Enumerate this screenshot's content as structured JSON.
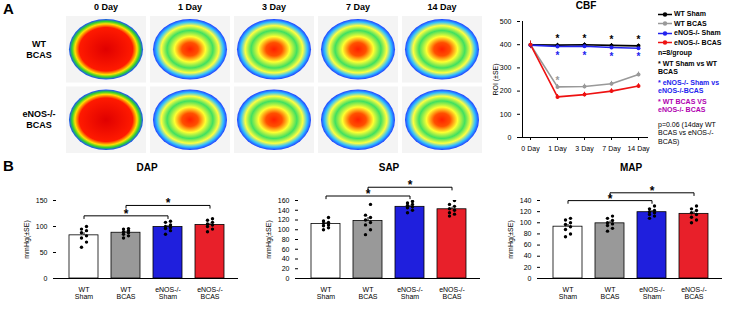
{
  "panel_labels": [
    "A",
    "B"
  ],
  "image_grid": {
    "columns": [
      "0 Day",
      "1 Day",
      "3 Day",
      "7 Day",
      "14 Day"
    ],
    "rows": [
      "WT BCAS",
      "eNOS-/- BCAS"
    ]
  },
  "chart_data": [
    {
      "type": "line",
      "title": "CBF",
      "y_label": "ROI (±SE)",
      "categories": [
        "0 Day",
        "1 Day",
        "3 Day",
        "7 Day",
        "14 Day"
      ],
      "ylim": [
        0,
        500
      ],
      "yticks": [
        0,
        100,
        200,
        300,
        400,
        500
      ],
      "legend": "right",
      "series": [
        {
          "name": "WT Sham",
          "color": "#000000",
          "marker": "circle",
          "values": [
            400,
            398,
            400,
            397,
            395
          ],
          "errors": [
            15,
            8,
            8,
            8,
            8
          ]
        },
        {
          "name": "WT BCAS",
          "color": "#999999",
          "marker": "circle",
          "values": [
            400,
            218,
            220,
            232,
            272
          ],
          "errors": [
            15,
            10,
            10,
            10,
            10
          ]
        },
        {
          "name": "eNOS-/- Sham",
          "color": "#2222ee",
          "marker": "circle",
          "values": [
            398,
            392,
            393,
            388,
            385
          ],
          "errors": [
            15,
            8,
            8,
            8,
            8
          ]
        },
        {
          "name": "eNOS-/- BCAS",
          "color": "#ee1111",
          "marker": "circle",
          "values": [
            400,
            175,
            185,
            200,
            222
          ],
          "errors": [
            15,
            10,
            10,
            10,
            10
          ]
        }
      ],
      "annotations": [
        {
          "label": "*",
          "color": "#000000",
          "series": "WT Sham",
          "categories": [
            "1 Day",
            "3 Day",
            "7 Day",
            "14 Day"
          ],
          "side": "above"
        },
        {
          "label": "*",
          "color": "#2222ee",
          "series": "eNOS-/- Sham",
          "categories": [
            "1 Day",
            "3 Day",
            "7 Day",
            "14 Day"
          ],
          "side": "below"
        },
        {
          "label": "*",
          "color": "#999999",
          "series": "WT BCAS",
          "categories": [
            "1 Day"
          ],
          "side": "above"
        }
      ],
      "stat_legend": [
        {
          "label": "* WT Sham vs WT BCAS",
          "color": "#000000"
        },
        {
          "label": "* eNOS-/- Sham vs eNOS-/-BCAS",
          "color": "#2222ee"
        },
        {
          "label": "* WT BCAS VS eNOS-/- BCAS",
          "color": "#b000b0"
        }
      ],
      "notes": [
        "n=8/group",
        "p=0.06 (14day WT BCAS vs eNOS-/-BCAS)"
      ]
    },
    {
      "type": "bar",
      "title": "DAP",
      "y_label": "mmHg(±SE)",
      "categories": [
        "WT Sham",
        "WT BCAS",
        "eNOS-/- Sham",
        "eNOS-/- BCAS"
      ],
      "values": [
        83,
        88,
        99,
        103
      ],
      "errors": [
        5,
        3,
        3,
        3
      ],
      "colors": [
        "#ffffff",
        "#999999",
        "#1f1fdd",
        "#e8202a"
      ],
      "points": [
        [
          60,
          70,
          78,
          82,
          88,
          92,
          95,
          100
        ],
        [
          78,
          82,
          85,
          88,
          90,
          92,
          95,
          96
        ],
        [
          85,
          92,
          96,
          98,
          100,
          103,
          108,
          110
        ],
        [
          90,
          95,
          100,
          103,
          105,
          108,
          112,
          115
        ]
      ],
      "ylim": [
        0,
        150
      ],
      "yticks": [
        0,
        50,
        100,
        150
      ],
      "comparisons": [
        {
          "between": [
            "WT Sham",
            "eNOS-/- Sham"
          ],
          "label": "*"
        },
        {
          "between": [
            "WT BCAS",
            "eNOS-/- BCAS"
          ],
          "label": "*"
        }
      ]
    },
    {
      "type": "bar",
      "title": "SAP",
      "y_label": "mmHg(±SE)",
      "categories": [
        "WT Sham",
        "WT BCAS",
        "eNOS-/- Sham",
        "eNOS-/- BCAS"
      ],
      "values": [
        112,
        118,
        147,
        142
      ],
      "errors": [
        3,
        7,
        3,
        4
      ],
      "colors": [
        "#ffffff",
        "#999999",
        "#1f1fdd",
        "#e8202a"
      ],
      "points": [
        [
          100,
          104,
          108,
          110,
          113,
          115,
          118,
          125
        ],
        [
          90,
          100,
          110,
          115,
          120,
          125,
          130,
          152
        ],
        [
          135,
          140,
          145,
          147,
          150,
          152,
          155,
          158
        ],
        [
          128,
          132,
          135,
          140,
          143,
          148,
          152,
          160
        ]
      ],
      "ylim": [
        0,
        160
      ],
      "yticks": [
        0,
        20,
        40,
        60,
        80,
        100,
        120,
        140,
        160
      ],
      "comparisons": [
        {
          "between": [
            "WT Sham",
            "eNOS-/- Sham"
          ],
          "label": "*"
        },
        {
          "between": [
            "WT BCAS",
            "eNOS-/- BCAS"
          ],
          "label": "*"
        }
      ]
    },
    {
      "type": "bar",
      "title": "MAP",
      "y_label": "mmHg(±SE)",
      "categories": [
        "WT Sham",
        "WT BCAS",
        "eNOS-/- Sham",
        "eNOS-/- BCAS"
      ],
      "values": [
        93,
        99,
        119,
        116
      ],
      "errors": [
        4,
        4,
        3,
        4
      ],
      "colors": [
        "#ffffff",
        "#999999",
        "#1f1fdd",
        "#e8202a"
      ],
      "points": [
        [
          75,
          80,
          88,
          93,
          97,
          100,
          105,
          108
        ],
        [
          85,
          90,
          95,
          98,
          100,
          104,
          108,
          112
        ],
        [
          108,
          112,
          115,
          118,
          120,
          122,
          125,
          130
        ],
        [
          100,
          105,
          110,
          115,
          118,
          122,
          125,
          130
        ]
      ],
      "ylim": [
        0,
        140
      ],
      "yticks": [
        0,
        20,
        40,
        60,
        80,
        100,
        120,
        140
      ],
      "comparisons": [
        {
          "between": [
            "WT Sham",
            "eNOS-/- Sham"
          ],
          "label": "*"
        },
        {
          "between": [
            "WT BCAS",
            "eNOS-/- BCAS"
          ],
          "label": "*"
        }
      ]
    }
  ]
}
